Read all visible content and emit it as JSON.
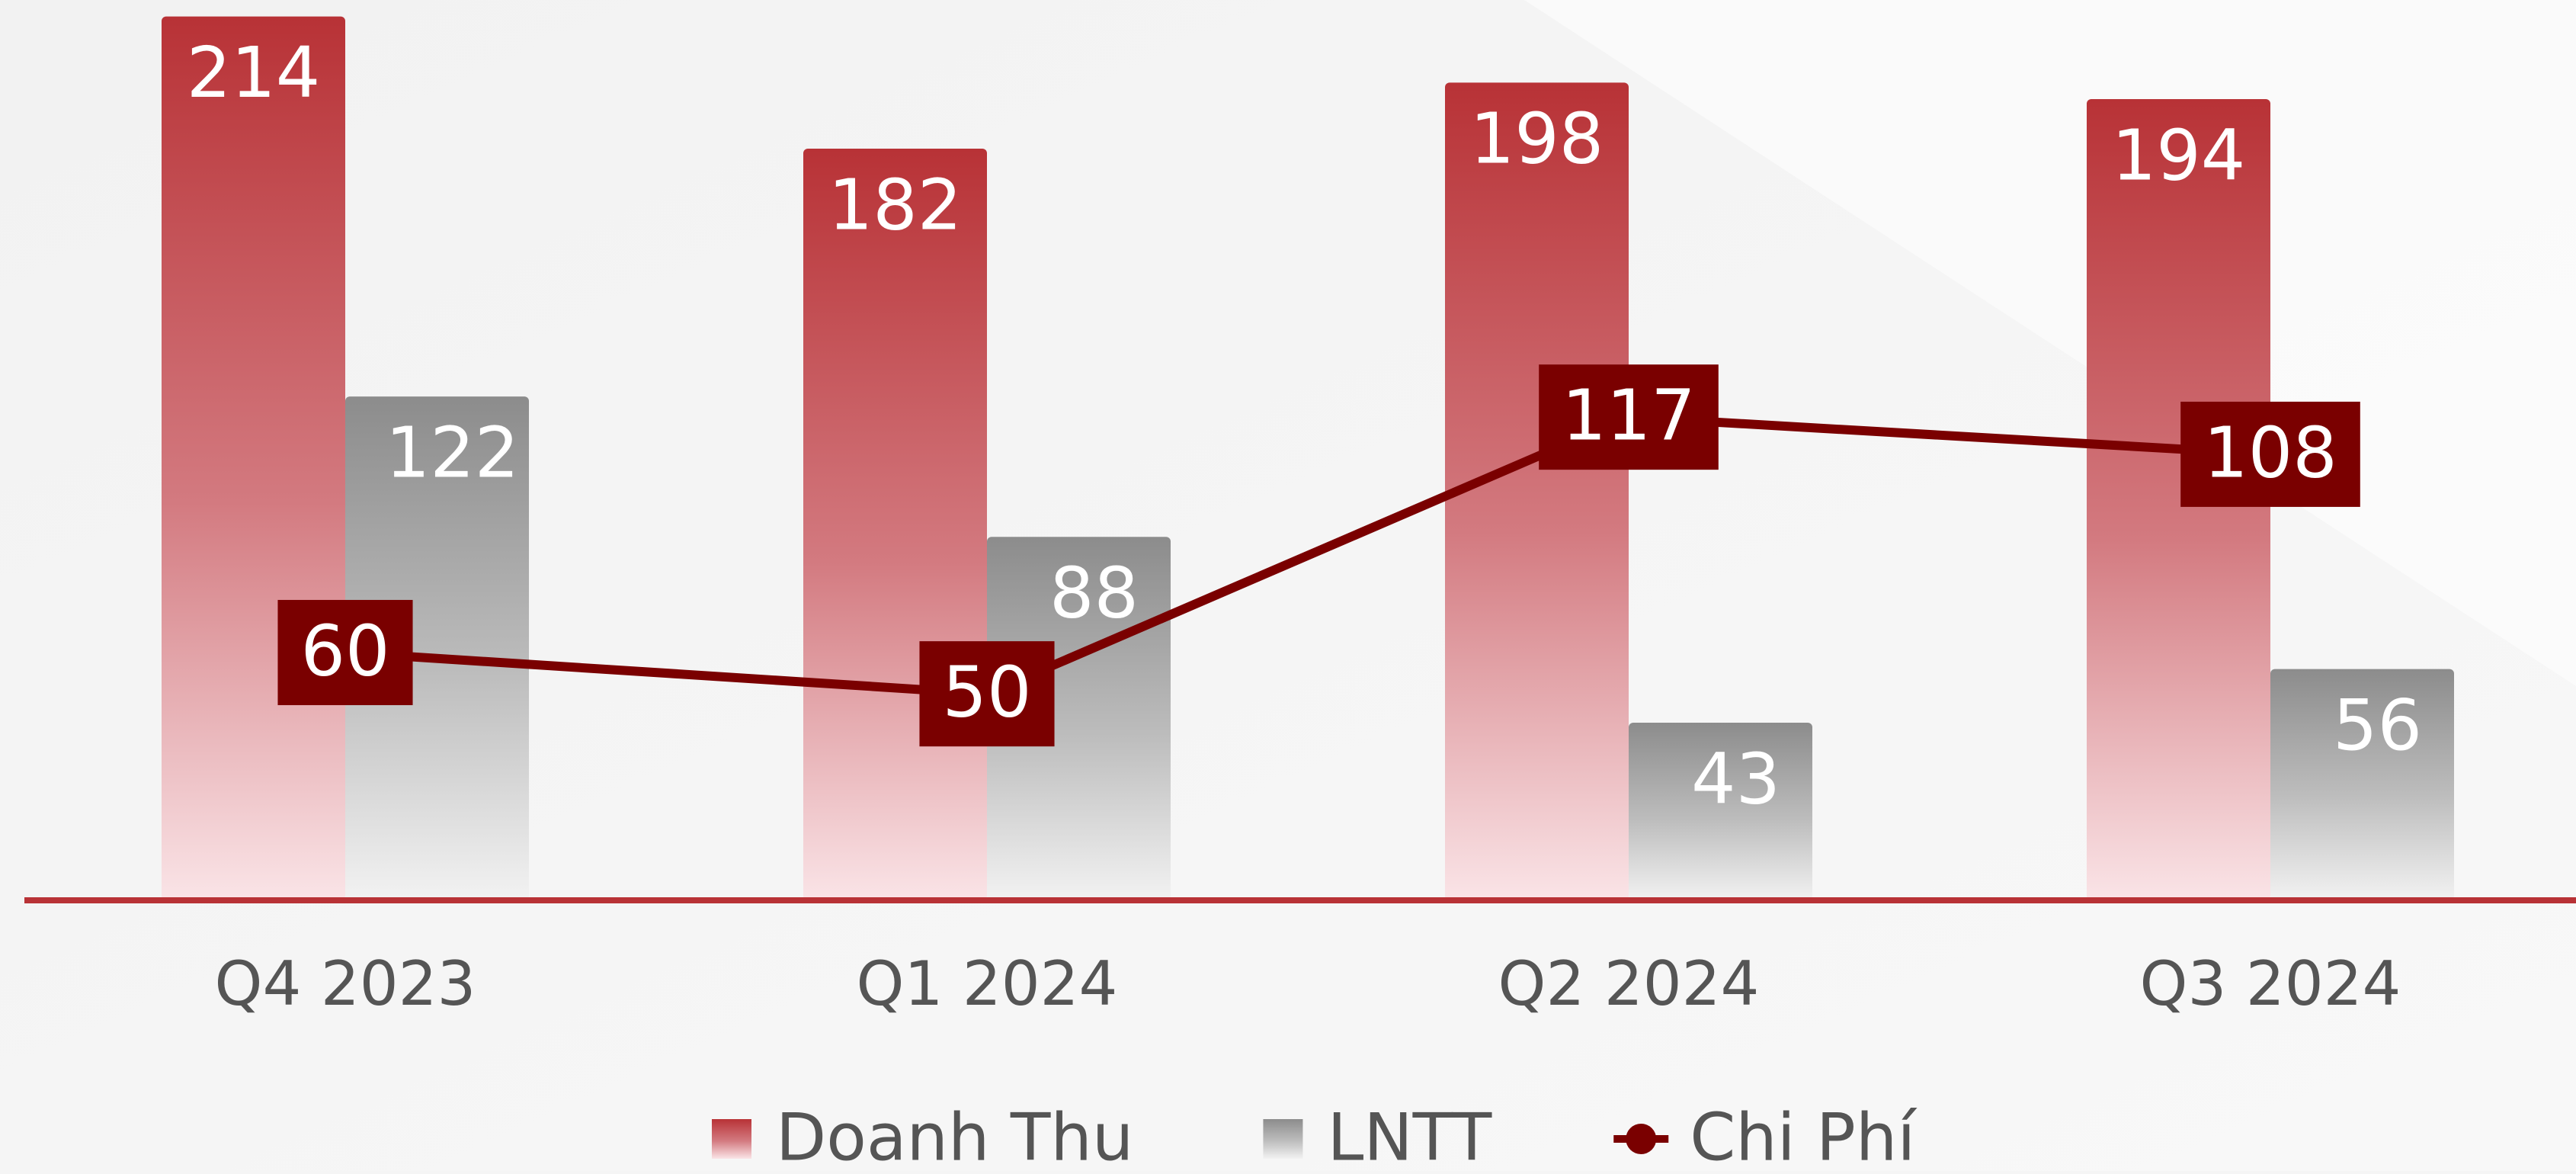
{
  "chart_data": {
    "type": "bar",
    "categories": [
      "Q4 2023",
      "Q1 2024",
      "Q2 2024",
      "Q3 2024"
    ],
    "series": [
      {
        "name": "Doanh Thu",
        "color": "#b83236",
        "values": [
          214,
          182,
          198,
          194
        ]
      },
      {
        "name": "LNTT",
        "color": "#8c8c8c",
        "values": [
          122,
          88,
          43,
          56
        ]
      },
      {
        "name": "Chi Phí",
        "type": "line",
        "color": "#7a0000",
        "values": [
          60,
          50,
          117,
          108
        ]
      }
    ],
    "ylim": [
      0,
      218
    ],
    "legend": "bottom"
  }
}
